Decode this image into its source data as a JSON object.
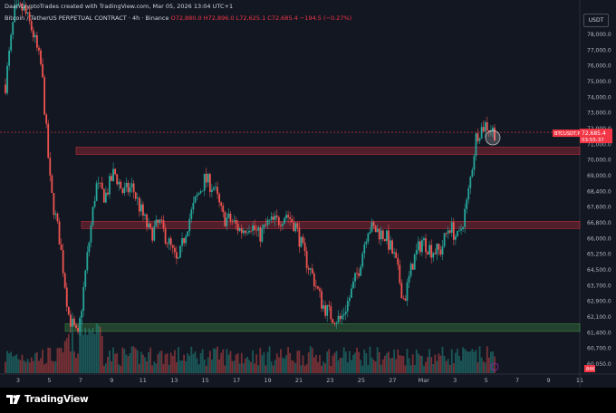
{
  "credit": "DaanCryptoTrades created with TradingView.com, Mar 05, 2026 13:04 UTC+1",
  "legend": {
    "symbol": "Bitcoin / TetherUS PERPETUAL CONTRACT · 4h · Binance",
    "open": "O72,880.0",
    "high": "H72,896.0",
    "low": "L72,625.1",
    "close": "C72,685.4",
    "change": "−194.5 (−0.27%)"
  },
  "currency_button": "USDT",
  "logo_text": "TradingView",
  "price_label": {
    "symbol": "BTCUSDT.P",
    "price": "72,685.4",
    "countdown": "03:55:37"
  },
  "volume_label": "84K",
  "colors": {
    "background": "#131722",
    "up": "#26a69a",
    "down": "#ef5350",
    "resistance_zone": "#f23645",
    "support_zone": "#4caf50"
  },
  "chart_data": {
    "type": "candlestick",
    "y_axis": {
      "ticks": [
        "78,000.0",
        "77,000.0",
        "76,000.0",
        "75,000.0",
        "74,000.0",
        "73,000.0",
        "72,000.0",
        "71,000.0",
        "70,000.0",
        "69,000.0",
        "68,400.0",
        "67,600.0",
        "66,800.0",
        "66,000.0",
        "65,250.0",
        "64,500.0",
        "63,700.0",
        "62,900.0",
        "62,100.0",
        "61,400.0",
        "60,700.0",
        "60,050.0"
      ],
      "ylim": [
        60000,
        78700
      ]
    },
    "x_axis": {
      "ticks": [
        "3",
        "5",
        "7",
        "9",
        "11",
        "13",
        "15",
        "17",
        "19",
        "21",
        "23",
        "25",
        "27",
        "Mar",
        "3",
        "5",
        "7",
        "9",
        "11"
      ]
    },
    "zones": [
      {
        "kind": "resistance",
        "low": 71600,
        "high": 71900
      },
      {
        "kind": "resistance",
        "low": 67700,
        "high": 68000
      },
      {
        "kind": "support",
        "low": 62200,
        "high": 62600
      }
    ],
    "current_price": 72685.4,
    "trend": [
      [
        0,
        75200
      ],
      [
        1,
        79000
      ],
      [
        2,
        79200
      ],
      [
        3,
        78000
      ],
      [
        4,
        76000
      ],
      [
        5,
        69600
      ],
      [
        6,
        67000
      ],
      [
        7,
        63000
      ],
      [
        8,
        61800
      ],
      [
        9,
        66000
      ],
      [
        10,
        69900
      ],
      [
        11,
        69300
      ],
      [
        12,
        70600
      ],
      [
        13,
        69500
      ],
      [
        14,
        69800
      ],
      [
        15,
        68500
      ],
      [
        16,
        67300
      ],
      [
        17,
        67900
      ],
      [
        18,
        66900
      ],
      [
        19,
        65700
      ],
      [
        20,
        67700
      ],
      [
        21,
        69100
      ],
      [
        22,
        70200
      ],
      [
        23,
        69800
      ],
      [
        24,
        68200
      ],
      [
        25,
        68000
      ],
      [
        26,
        67500
      ],
      [
        27,
        67900
      ],
      [
        28,
        67200
      ],
      [
        29,
        67900
      ],
      [
        30,
        68000
      ],
      [
        31,
        68400
      ],
      [
        32,
        67800
      ],
      [
        33,
        66200
      ],
      [
        34,
        65000
      ],
      [
        35,
        63600
      ],
      [
        36,
        63000
      ],
      [
        37,
        62800
      ],
      [
        38,
        64000
      ],
      [
        39,
        65500
      ],
      [
        40,
        67700
      ],
      [
        41,
        67500
      ],
      [
        42,
        67200
      ],
      [
        43,
        66000
      ],
      [
        44,
        63800
      ],
      [
        45,
        65900
      ],
      [
        46,
        67000
      ],
      [
        47,
        66500
      ],
      [
        48,
        66400
      ],
      [
        49,
        67800
      ],
      [
        50,
        67000
      ],
      [
        51,
        69100
      ],
      [
        52,
        72600
      ],
      [
        53,
        73100
      ],
      [
        54,
        72700
      ]
    ],
    "volume": "volume bars beneath price, green for up and red for down candles"
  }
}
